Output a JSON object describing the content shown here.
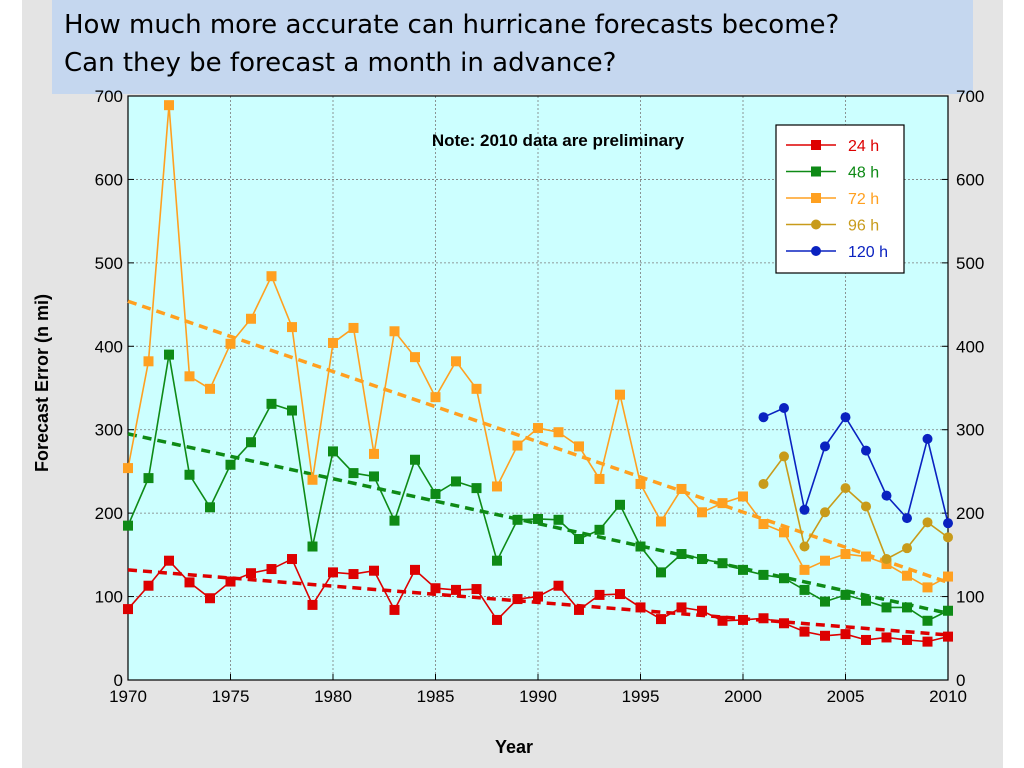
{
  "slide": {
    "title_line1": "How much more accurate can hurricane forecasts become?",
    "title_line2": "Can they be forecast a month in advance?"
  },
  "chart_data": {
    "type": "line",
    "xlabel": "Year",
    "ylabel": "Forecast Error (n mi)",
    "note": "Note: 2010 data are preliminary",
    "xlim": [
      1970,
      2010
    ],
    "ylim": [
      0,
      700
    ],
    "xticks": [
      1970,
      1975,
      1980,
      1985,
      1990,
      1995,
      2000,
      2005,
      2010
    ],
    "yticks": [
      0,
      100,
      200,
      300,
      400,
      500,
      600,
      700
    ],
    "grid": true,
    "legend_position": "top-right",
    "series": [
      {
        "name": "24 h",
        "color": "#dd0000",
        "marker": "square",
        "x": [
          1970,
          1971,
          1972,
          1973,
          1974,
          1975,
          1976,
          1977,
          1978,
          1979,
          1980,
          1981,
          1982,
          1983,
          1984,
          1985,
          1986,
          1987,
          1988,
          1989,
          1990,
          1991,
          1992,
          1993,
          1994,
          1995,
          1996,
          1997,
          1998,
          1999,
          2000,
          2001,
          2002,
          2003,
          2004,
          2005,
          2006,
          2007,
          2008,
          2009,
          2010
        ],
        "y": [
          85,
          113,
          143,
          117,
          98,
          118,
          128,
          133,
          145,
          90,
          129,
          127,
          131,
          84,
          132,
          110,
          108,
          109,
          72,
          97,
          100,
          113,
          84,
          102,
          103,
          87,
          73,
          87,
          83,
          71,
          72,
          74,
          68,
          58,
          53,
          55,
          48,
          51,
          48,
          46,
          52
        ],
        "trend": [
          132,
          54
        ]
      },
      {
        "name": "48 h",
        "color": "#0e8a16",
        "marker": "square",
        "x": [
          1970,
          1971,
          1972,
          1973,
          1974,
          1975,
          1976,
          1977,
          1978,
          1979,
          1980,
          1981,
          1982,
          1983,
          1984,
          1985,
          1986,
          1987,
          1988,
          1989,
          1990,
          1991,
          1992,
          1993,
          1994,
          1995,
          1996,
          1997,
          1998,
          1999,
          2000,
          2001,
          2002,
          2003,
          2004,
          2005,
          2006,
          2007,
          2008,
          2009,
          2010
        ],
        "y": [
          185,
          242,
          390,
          246,
          207,
          258,
          285,
          331,
          323,
          160,
          274,
          248,
          244,
          191,
          264,
          223,
          238,
          230,
          143,
          192,
          193,
          192,
          169,
          180,
          210,
          160,
          129,
          151,
          145,
          140,
          132,
          126,
          122,
          108,
          94,
          102,
          95,
          87,
          87,
          71,
          83
        ],
        "trend": [
          295,
          80
        ]
      },
      {
        "name": "72 h",
        "color": "#ffa020",
        "marker": "square",
        "x": [
          1970,
          1971,
          1972,
          1973,
          1974,
          1975,
          1976,
          1977,
          1978,
          1979,
          1980,
          1981,
          1982,
          1983,
          1984,
          1985,
          1986,
          1987,
          1988,
          1989,
          1990,
          1991,
          1992,
          1993,
          1994,
          1995,
          1996,
          1997,
          1998,
          1999,
          2000,
          2001,
          2002,
          2003,
          2004,
          2005,
          2006,
          2007,
          2008,
          2009,
          2010
        ],
        "y": [
          254,
          382,
          689,
          364,
          349,
          403,
          433,
          484,
          423,
          240,
          404,
          422,
          271,
          418,
          387,
          339,
          382,
          349,
          232,
          281,
          302,
          297,
          280,
          241,
          342,
          235,
          190,
          229,
          201,
          212,
          220,
          187,
          177,
          132,
          143,
          151,
          148,
          139,
          125,
          111,
          124
        ],
        "trend": [
          454,
          117
        ]
      },
      {
        "name": "96 h",
        "color": "#c89b1a",
        "marker": "circle",
        "x": [
          2001,
          2002,
          2003,
          2004,
          2005,
          2006,
          2007,
          2008,
          2009,
          2010
        ],
        "y": [
          235,
          268,
          160,
          201,
          230,
          208,
          145,
          158,
          189,
          171
        ]
      },
      {
        "name": "120 h",
        "color": "#0a22c0",
        "marker": "circle",
        "x": [
          2001,
          2002,
          2003,
          2004,
          2005,
          2006,
          2007,
          2008,
          2009,
          2010
        ],
        "y": [
          315,
          326,
          204,
          280,
          315,
          275,
          221,
          194,
          289,
          188
        ]
      }
    ]
  }
}
